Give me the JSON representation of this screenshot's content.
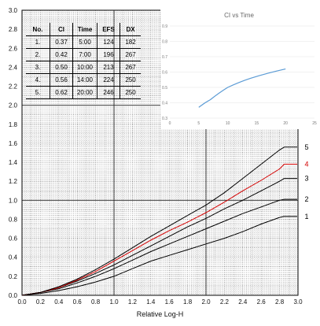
{
  "chart_data": [
    {
      "type": "line",
      "xlabel": "Relative Log-H",
      "ylabel": "",
      "xlim": [
        0.0,
        3.0
      ],
      "ylim": [
        0.0,
        3.0
      ],
      "xticks": [
        "0.0",
        "0.2",
        "0.4",
        "0.6",
        "0.8",
        "1.0",
        "1.2",
        "1.4",
        "1.6",
        "1.8",
        "2.0",
        "2.2",
        "2.4",
        "2.6",
        "2.8",
        "3.0"
      ],
      "yticks": [
        "0.0",
        "0.2",
        "0.4",
        "0.6",
        "0.8",
        "1.0",
        "1.2",
        "1.4",
        "1.6",
        "1.8",
        "2.0",
        "2.2",
        "2.4",
        "2.6",
        "2.8",
        "3.0"
      ],
      "grid": "dotted",
      "series": [
        {
          "name": "1",
          "color": "#000000",
          "x": [
            0.0,
            0.2,
            0.4,
            0.6,
            0.8,
            1.0,
            1.2,
            1.4,
            1.6,
            1.8,
            2.0,
            2.2,
            2.4,
            2.6,
            2.8,
            2.85
          ],
          "values": [
            0.0,
            0.02,
            0.05,
            0.09,
            0.14,
            0.2,
            0.28,
            0.36,
            0.42,
            0.48,
            0.54,
            0.6,
            0.67,
            0.75,
            0.82,
            0.83
          ]
        },
        {
          "name": "2",
          "color": "#000000",
          "x": [
            0.0,
            0.2,
            0.4,
            0.6,
            0.8,
            1.0,
            1.2,
            1.4,
            1.6,
            1.8,
            2.0,
            2.2,
            2.4,
            2.6,
            2.8,
            2.85
          ],
          "values": [
            0.0,
            0.03,
            0.07,
            0.13,
            0.2,
            0.28,
            0.37,
            0.46,
            0.54,
            0.62,
            0.7,
            0.78,
            0.86,
            0.93,
            1.0,
            1.01
          ]
        },
        {
          "name": "3",
          "color": "#000000",
          "x": [
            0.0,
            0.2,
            0.4,
            0.6,
            0.8,
            1.0,
            1.2,
            1.4,
            1.6,
            1.8,
            2.0,
            2.2,
            2.4,
            2.6,
            2.8,
            2.85
          ],
          "values": [
            0.0,
            0.03,
            0.08,
            0.15,
            0.23,
            0.32,
            0.42,
            0.52,
            0.62,
            0.72,
            0.81,
            0.91,
            1.0,
            1.1,
            1.2,
            1.23
          ]
        },
        {
          "name": "4",
          "color": "#d40000",
          "x": [
            0.0,
            0.2,
            0.4,
            0.6,
            0.8,
            1.0,
            1.2,
            1.4,
            1.6,
            1.8,
            2.0,
            2.2,
            2.4,
            2.6,
            2.8,
            2.85
          ],
          "values": [
            0.0,
            0.03,
            0.08,
            0.16,
            0.25,
            0.36,
            0.47,
            0.58,
            0.68,
            0.77,
            0.87,
            0.98,
            1.1,
            1.21,
            1.33,
            1.38
          ]
        },
        {
          "name": "5",
          "color": "#000000",
          "x": [
            0.0,
            0.2,
            0.4,
            0.6,
            0.8,
            1.0,
            1.2,
            1.4,
            1.6,
            1.8,
            2.0,
            2.2,
            2.4,
            2.6,
            2.8,
            2.85
          ],
          "values": [
            0.0,
            0.03,
            0.09,
            0.17,
            0.27,
            0.38,
            0.5,
            0.62,
            0.73,
            0.84,
            0.95,
            1.08,
            1.23,
            1.38,
            1.53,
            1.56
          ]
        }
      ],
      "table": {
        "headers": [
          "No.",
          "CI",
          "Time",
          "EFS",
          "DX"
        ],
        "rows": [
          [
            "1.",
            "0.37",
            "5:00",
            "124",
            "182"
          ],
          [
            "2.",
            "0.42",
            "7:00",
            "196",
            "267"
          ],
          [
            "3.",
            "0.50",
            "10:00",
            "213",
            "267"
          ],
          [
            "4.",
            "0.56",
            "14:00",
            "224",
            "250"
          ],
          [
            "5.",
            "0.62",
            "20:00",
            "246",
            "250"
          ]
        ]
      }
    },
    {
      "type": "line",
      "title": "CI vs Time",
      "xlim": [
        0,
        25
      ],
      "ylim": [
        0.3,
        0.9
      ],
      "xticks": [
        "0",
        "5",
        "10",
        "15",
        "20",
        "25"
      ],
      "yticks": [
        "0.3",
        "0.4",
        "0.5",
        "0.6",
        "0.7",
        "0.8",
        "0.9"
      ],
      "color": "#5b9bd5",
      "x": [
        5,
        7,
        10,
        14,
        20
      ],
      "values": [
        0.37,
        0.42,
        0.5,
        0.56,
        0.62
      ]
    }
  ]
}
